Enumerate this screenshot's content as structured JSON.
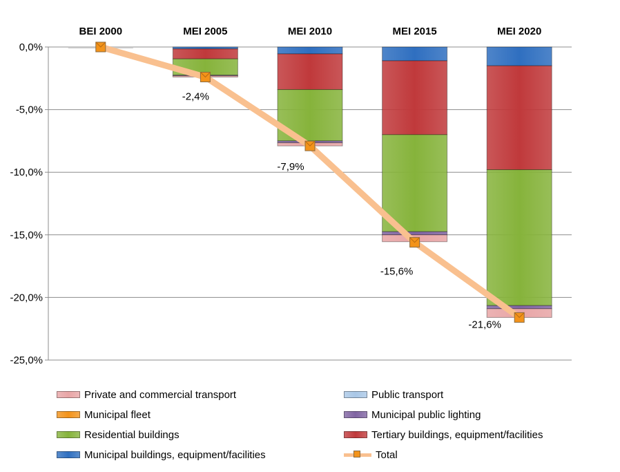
{
  "chart_data": {
    "type": "bar",
    "subtype": "stacked",
    "categories": [
      "BEI 2000",
      "MEI 2005",
      "MEI 2010",
      "MEI 2015",
      "MEI 2020"
    ],
    "y_ticks": [
      "0,0%",
      "-5,0%",
      "-10,0%",
      "-15,0%",
      "-20,0%",
      "-25,0%"
    ],
    "ylim": [
      -25,
      0
    ],
    "grid": true,
    "legend_position": "bottom",
    "series": [
      {
        "name": "Municipal buildings, equipment/facilities",
        "color": "#2f6fc0",
        "values": [
          0,
          -0.15,
          -0.55,
          -1.1,
          -1.5
        ]
      },
      {
        "name": "Tertiary buildings, equipment/facilities",
        "color": "#c0393b",
        "values": [
          0,
          -0.8,
          -2.85,
          -5.9,
          -8.3
        ]
      },
      {
        "name": "Residential buildings",
        "color": "#86b33b",
        "values": [
          0,
          -1.3,
          -4.1,
          -7.75,
          -10.85
        ]
      },
      {
        "name": "Municipal public lighting",
        "color": "#8064a2",
        "values": [
          0,
          -0.05,
          -0.15,
          -0.25,
          -0.25
        ]
      },
      {
        "name": "Municipal fleet",
        "color": "#f3931a",
        "values": [
          0,
          0,
          0,
          0,
          0
        ]
      },
      {
        "name": "Public transport",
        "color": "#a9c7e6",
        "values": [
          0,
          0,
          0,
          0,
          0
        ]
      },
      {
        "name": "Private and commercial transport",
        "color": "#e8a5a6",
        "values": [
          0,
          -0.1,
          -0.25,
          -0.55,
          -0.7
        ]
      }
    ],
    "total": {
      "name": "Total",
      "values": [
        0.0,
        -2.4,
        -7.9,
        -15.6,
        -21.6
      ],
      "labels": [
        "",
        "-2,4%",
        "-7,9%",
        "-15,6%",
        "-21,6%"
      ],
      "line_color": "#f9c08f",
      "marker_color": "#f3931a"
    },
    "legend": [
      {
        "label": "Private and commercial transport",
        "color": "#e8a5a6",
        "kind": "bar"
      },
      {
        "label": "Public transport",
        "color": "#a9c7e6",
        "kind": "bar"
      },
      {
        "label": "Municipal fleet",
        "color": "#f3931a",
        "kind": "bar"
      },
      {
        "label": "Municipal public lighting",
        "color": "#8064a2",
        "kind": "bar"
      },
      {
        "label": "Residential buildings",
        "color": "#86b33b",
        "kind": "bar"
      },
      {
        "label": "Tertiary buildings, equipment/facilities",
        "color": "#c0393b",
        "kind": "bar"
      },
      {
        "label": "Municipal buildings, equipment/facilities",
        "color": "#2f6fc0",
        "kind": "bar"
      },
      {
        "label": "Total",
        "color": "#f9c08f",
        "kind": "line"
      }
    ]
  }
}
